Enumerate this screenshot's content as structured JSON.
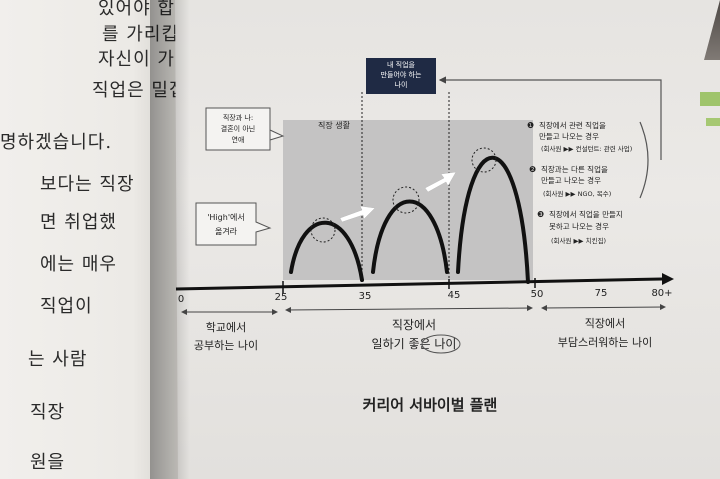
{
  "left_page": {
    "lines": [
      "있어야 합이기",
      "를 가리킵니다.",
      "자신이 가진 기술",
      "직업은 밀접한",
      "명하겠습니다.",
      "보다는 직장",
      "면 취업했",
      "에는 매우",
      "직업이",
      "는 사람",
      "직장",
      "원을"
    ]
  },
  "diagram": {
    "top_box": [
      "내 직업을",
      "만들어야 하는",
      "나이"
    ],
    "callout_marriage": [
      "직장과 나:",
      "결혼이 아닌",
      "연애"
    ],
    "callout_high": [
      "'High'에서",
      "옮겨라"
    ],
    "region_label": "직장 생활",
    "axis_ticks": [
      "0",
      "25",
      "35",
      "45",
      "50",
      "75",
      "80+"
    ],
    "periods": [
      {
        "lines": [
          "학교에서",
          "공부하는 나이"
        ]
      },
      {
        "lines": [
          "직장에서",
          "일하기 좋은 나이"
        ]
      },
      {
        "lines": [
          "직장에서",
          "부담스러워하는 나이"
        ]
      }
    ],
    "options": [
      {
        "num": "❶",
        "lines": [
          "직장에서 관련 직업을",
          "만들고 나오는 경우"
        ],
        "note": "(회사원 ▶▶ 컨설턴트: 관련 사업)"
      },
      {
        "num": "❷",
        "lines": [
          "직장과는 다른 직업을",
          "만들고 나오는 경우"
        ],
        "note": "(회사원 ▶▶ NGO, 목수)"
      },
      {
        "num": "❸",
        "lines": [
          "직장에서 직업을 만들지",
          "못하고 나오는 경우"
        ],
        "note": "(회사원 ▶▶ 치킨집)"
      }
    ],
    "caption": "커리어 서바이벌 플랜"
  },
  "colors": {
    "navy": "#1f2a44",
    "shade": "#c9c8c8",
    "ink": "#111111"
  }
}
